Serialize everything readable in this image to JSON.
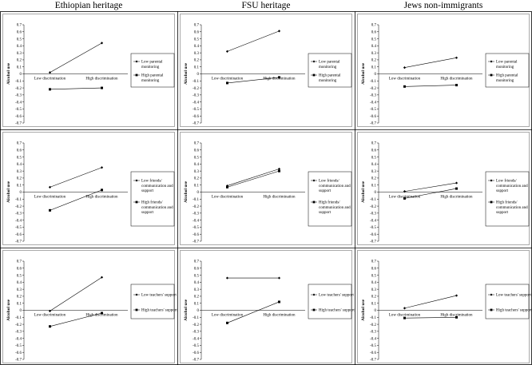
{
  "columns": [
    "Ethiopian heritage",
    "FSU heritage",
    "Jews non-immigrants"
  ],
  "chart_data": [
    {
      "type": "line",
      "group": "Ethiopian heritage",
      "moderator": "parental monitoring",
      "ylabel": "Alcohol use",
      "ylim": [
        -0.7,
        0.7
      ],
      "categories": [
        "Low discrimination",
        "High discrimination"
      ],
      "series": [
        {
          "name": "Low parental monitoring",
          "values": [
            0.02,
            0.44
          ],
          "marker": "diamond"
        },
        {
          "name": "High parental monitoring",
          "values": [
            -0.22,
            -0.2
          ],
          "marker": "square"
        }
      ]
    },
    {
      "type": "line",
      "group": "FSU heritage",
      "moderator": "parental monitoring",
      "ylabel": "Alcohol use",
      "ylim": [
        -0.7,
        0.7
      ],
      "categories": [
        "Low discrimination",
        "High discrimination"
      ],
      "series": [
        {
          "name": "Low parental monitoring",
          "values": [
            0.32,
            0.61
          ],
          "marker": "diamond"
        },
        {
          "name": "High parental monitoring",
          "values": [
            -0.13,
            -0.05
          ],
          "marker": "square"
        }
      ]
    },
    {
      "type": "line",
      "group": "Jews non-immigrants",
      "moderator": "parental monitoring",
      "ylabel": "Alcohol use",
      "ylim": [
        -0.7,
        0.7
      ],
      "categories": [
        "Low discrimination",
        "High discrimination"
      ],
      "series": [
        {
          "name": "Low parental monitoring",
          "values": [
            0.09,
            0.23
          ],
          "marker": "diamond"
        },
        {
          "name": "High parental monitoring",
          "values": [
            -0.18,
            -0.16
          ],
          "marker": "square"
        }
      ]
    },
    {
      "type": "line",
      "group": "Ethiopian heritage",
      "moderator": "friends communication and support",
      "ylabel": "Alcohol use",
      "ylim": [
        -0.7,
        0.7
      ],
      "categories": [
        "Low discrimination",
        "High discrimination"
      ],
      "series": [
        {
          "name": "Low friends/ communication and support",
          "values": [
            0.07,
            0.35
          ],
          "marker": "diamond"
        },
        {
          "name": "High friends/ communication and support",
          "values": [
            -0.26,
            0.03
          ],
          "marker": "square"
        }
      ]
    },
    {
      "type": "line",
      "group": "FSU heritage",
      "moderator": "friends communication and support",
      "ylabel": "Alcohol use",
      "ylim": [
        -0.7,
        0.7
      ],
      "categories": [
        "Low discrimination",
        "High discrimination"
      ],
      "series": [
        {
          "name": "Low friends/ communication and support",
          "values": [
            0.09,
            0.33
          ],
          "marker": "diamond"
        },
        {
          "name": "High friends/ communication and support",
          "values": [
            0.07,
            0.3
          ],
          "marker": "square"
        }
      ]
    },
    {
      "type": "line",
      "group": "Jews non-immigrants",
      "moderator": "friends communication and support",
      "ylabel": "Alcohol use",
      "ylim": [
        -0.7,
        0.7
      ],
      "categories": [
        "Low discrimination",
        "High discrimination"
      ],
      "series": [
        {
          "name": "Low friends/ communication and support",
          "values": [
            0.01,
            0.13
          ],
          "marker": "diamond"
        },
        {
          "name": "High friends/ communication and support",
          "values": [
            -0.09,
            0.05
          ],
          "marker": "square"
        }
      ]
    },
    {
      "type": "line",
      "group": "Ethiopian heritage",
      "moderator": "teachers support",
      "ylabel": "Alcohol use",
      "ylim": [
        -0.7,
        0.7
      ],
      "categories": [
        "Low discrimination",
        "High discrimination"
      ],
      "series": [
        {
          "name": "Low teachers' support",
          "values": [
            -0.01,
            0.47
          ],
          "marker": "diamond"
        },
        {
          "name": "High teachers' support",
          "values": [
            -0.23,
            -0.04
          ],
          "marker": "square"
        }
      ]
    },
    {
      "type": "line",
      "group": "FSU heritage",
      "moderator": "teachers support",
      "ylabel": "Alcohol use",
      "ylim": [
        -0.7,
        0.7
      ],
      "categories": [
        "Low discrimination",
        "High discrimination"
      ],
      "series": [
        {
          "name": "Low teachers' support",
          "values": [
            0.46,
            0.46
          ],
          "marker": "diamond"
        },
        {
          "name": "High teachers' support",
          "values": [
            -0.18,
            0.12
          ],
          "marker": "square"
        }
      ]
    },
    {
      "type": "line",
      "group": "Jews non-immigrants",
      "moderator": "teachers support",
      "ylabel": "Alcohol use",
      "ylim": [
        -0.7,
        0.7
      ],
      "categories": [
        "Low discrimination",
        "High discrimination"
      ],
      "series": [
        {
          "name": "Low teachers' support",
          "values": [
            0.03,
            0.21
          ],
          "marker": "diamond"
        },
        {
          "name": "High teachers' support",
          "values": [
            -0.11,
            -0.1
          ],
          "marker": "square"
        }
      ]
    }
  ],
  "legend_lines": [
    [
      [
        "Low parental",
        "monitoring"
      ],
      [
        "High parental",
        "monitoring"
      ]
    ],
    [
      [
        "Low friends/",
        "communication and",
        "support"
      ],
      [
        "High friends/",
        "communication and",
        "support"
      ]
    ],
    [
      [
        "Low teachers' support"
      ],
      [
        "High teachers' support"
      ]
    ]
  ],
  "ticks": [
    0.7,
    0.6,
    0.5,
    0.4,
    0.3,
    0.2,
    0.1,
    0,
    -0.1,
    -0.2,
    -0.3,
    -0.4,
    -0.5,
    -0.6,
    -0.7
  ],
  "colors": {
    "line": "#000000",
    "frame": "#555555",
    "grid_border": "#000000"
  }
}
